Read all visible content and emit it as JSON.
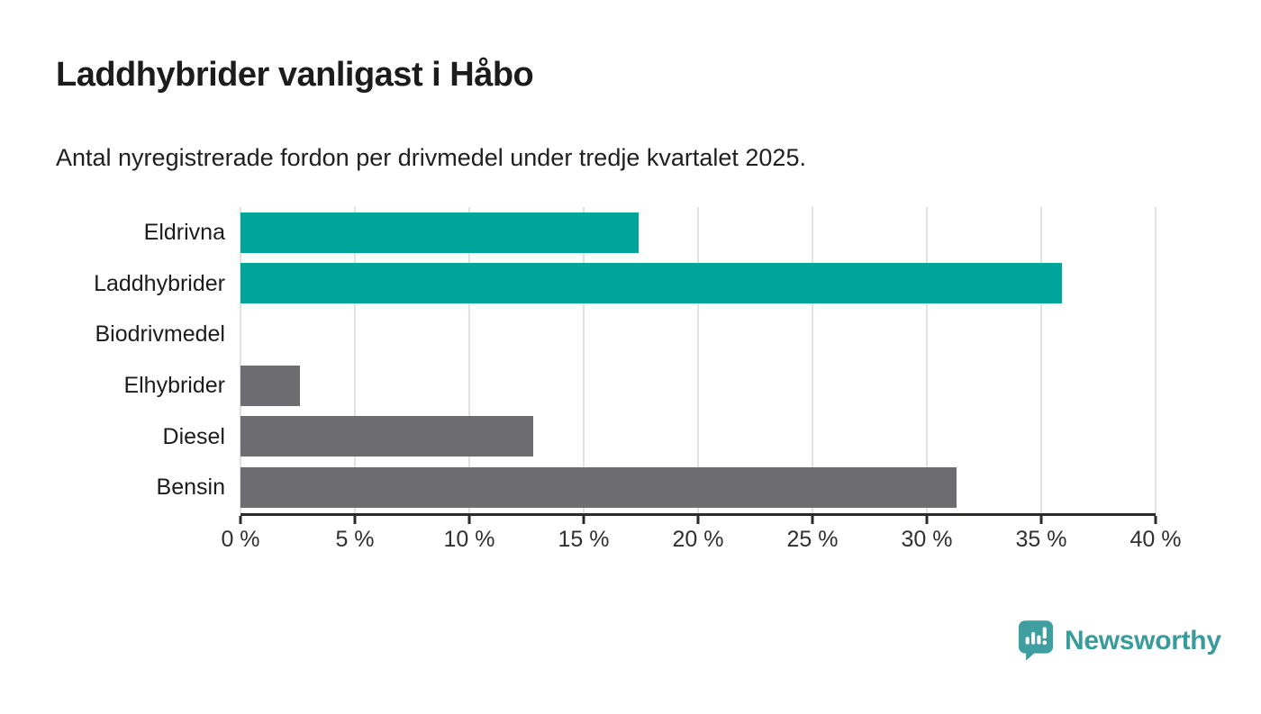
{
  "header": {
    "title": "Laddhybrider vanligast i Håbo",
    "subtitle": "Antal nyregistrerade fordon per drivmedel under tredje kvartalet 2025."
  },
  "chart_data": {
    "type": "bar",
    "orientation": "horizontal",
    "title": "Laddhybrider vanligast i Håbo",
    "subtitle": "Antal nyregistrerade fordon per drivmedel under tredje kvartalet 2025.",
    "categories": [
      "Eldrivna",
      "Laddhybrider",
      "Biodrivmedel",
      "Elhybrider",
      "Diesel",
      "Bensin"
    ],
    "values": [
      17.4,
      35.9,
      0,
      2.6,
      12.8,
      31.3
    ],
    "unit": "%",
    "bar_colors": [
      "#00a49a",
      "#00a49a",
      "#00a49a",
      "#6c6c71",
      "#6c6c71",
      "#6c6c71"
    ],
    "xlim": [
      0,
      40
    ],
    "tick_values": [
      0,
      5,
      10,
      15,
      20,
      25,
      30,
      35,
      40
    ],
    "tick_labels": [
      "0 %",
      "5 %",
      "10 %",
      "15 %",
      "20 %",
      "25 %",
      "30 %",
      "35 %",
      "40 %"
    ],
    "grid": true,
    "legend": false
  },
  "colors": {
    "accent_teal": "#00a49a",
    "neutral_gray": "#6c6c71",
    "gridline": "#e2e2e2",
    "axis": "#2b2b2b",
    "logo_teal": "#3f9fa0"
  },
  "footer": {
    "brand": "Newsworthy",
    "brand_color": "#3a9b9c"
  }
}
